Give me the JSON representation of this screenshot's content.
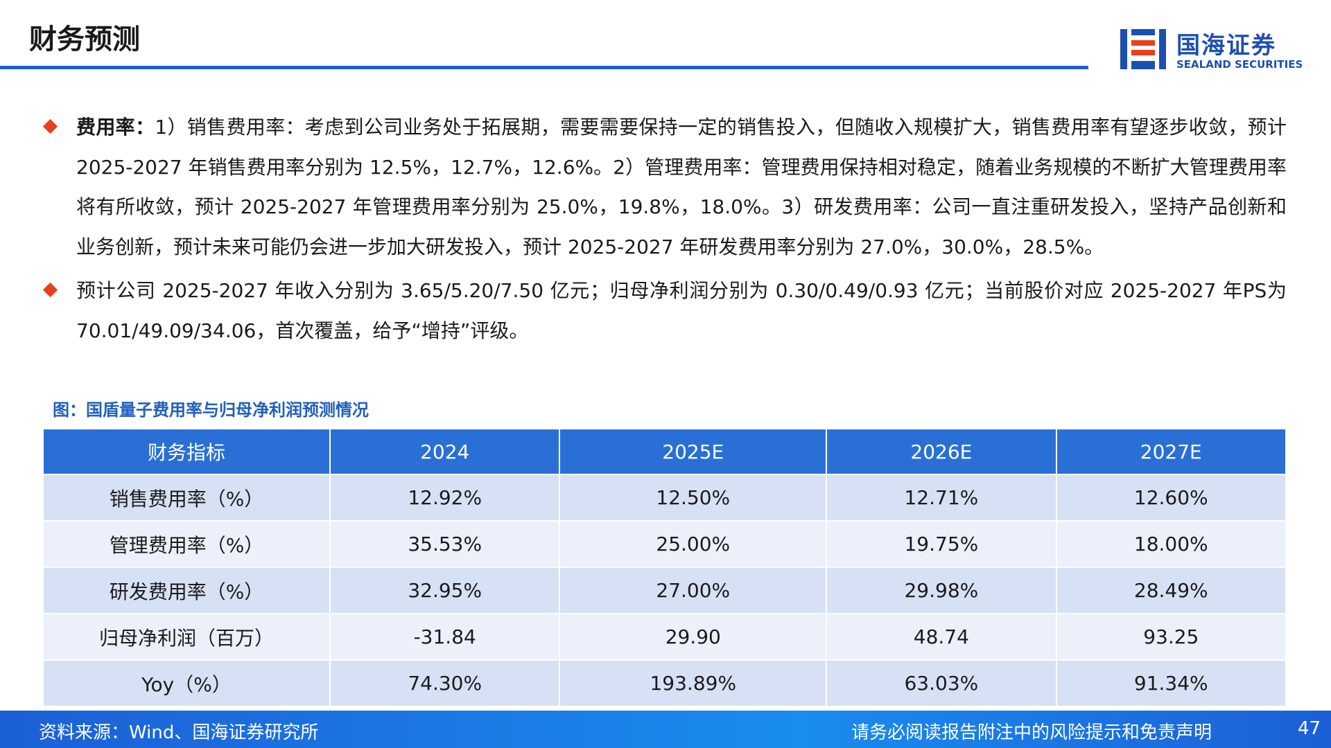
{
  "header": {
    "title": "财务预测",
    "logo_cn": "国海证券",
    "logo_en": "SEALAND SECURITIES"
  },
  "bullets": [
    {
      "lead": "费用率：",
      "text": "1）销售费用率：考虑到公司业务处于拓展期，需要需要保持一定的销售投入，但随收入规模扩大，销售费用率有望逐步收敛，预计 2025-2027 年销售费用率分别为 12.5%，12.7%，12.6%。2）管理费用率：管理费用保持相对稳定，随着业务规模的不断扩大管理费用率将有所收敛，预计 2025-2027 年管理费用率分别为 25.0%，19.8%，18.0%。3）研发费用率：公司一直注重研发投入，坚持产品创新和业务创新，预计未来可能仍会进一步加大研发投入，预计 2025-2027 年研发费用率分别为 27.0%，30.0%，28.5%。"
    },
    {
      "text": "预计公司 2025-2027 年收入分别为 3.65/5.20/7.50 亿元；归母净利润分别为 0.30/0.49/0.93 亿元；当前股价对应 2025-2027 年PS为 70.01/49.09/34.06，首次覆盖，给予“增持”评级。"
    }
  ],
  "figure": {
    "caption": "图：国盾量子费用率与归母净利润预测情况"
  },
  "table": {
    "header": [
      "财务指标",
      "2024",
      "2025E",
      "2026E",
      "2027E"
    ],
    "rows": [
      [
        "销售费用率（%）",
        "12.92%",
        "12.50%",
        "12.71%",
        "12.60%"
      ],
      [
        "管理费用率（%）",
        "35.53%",
        "25.00%",
        "19.75%",
        "18.00%"
      ],
      [
        "研发费用率（%）",
        "32.95%",
        "27.00%",
        "29.98%",
        "28.49%"
      ],
      [
        "归母净利润（百万）",
        "-31.84",
        "29.90",
        "48.74",
        "93.25"
      ],
      [
        "Yoy（%）",
        "74.30%",
        "193.89%",
        "63.03%",
        "91.34%"
      ]
    ]
  },
  "footer": {
    "source": "资料来源：Wind、国海证券研究所",
    "disclaimer": "请务必阅读报告附注中的风险提示和免责声明",
    "page": "47"
  }
}
